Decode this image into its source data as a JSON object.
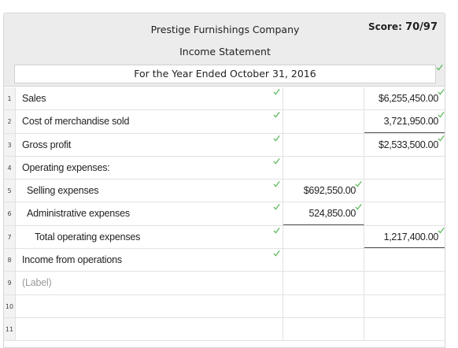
{
  "header": {
    "company": "Prestige Furnishings Company",
    "statement": "Income Statement",
    "period": "For the Year Ended October 31, 2016",
    "score_label": "Score:",
    "score_value": "70/97"
  },
  "colors": {
    "check": "#5cb85c",
    "header_bg": "#ececec"
  },
  "icons": {
    "check": "checkmark-icon"
  },
  "rows": [
    {
      "num": "1",
      "label": "Sales",
      "col1": "",
      "col2": "$6,255,450.00"
    },
    {
      "num": "2",
      "label": "Cost of merchandise sold",
      "col1": "",
      "col2": "3,721,950.00"
    },
    {
      "num": "3",
      "label": "Gross profit",
      "col1": "",
      "col2": "$2,533,500.00"
    },
    {
      "num": "4",
      "label": "Operating expenses:",
      "col1": "",
      "col2": ""
    },
    {
      "num": "5",
      "label": "Selling expenses",
      "col1": "$692,550.00",
      "col2": ""
    },
    {
      "num": "6",
      "label": "Administrative expenses",
      "col1": "524,850.00",
      "col2": ""
    },
    {
      "num": "7",
      "label": "Total operating expenses",
      "col1": "",
      "col2": "1,217,400.00"
    },
    {
      "num": "8",
      "label": "Income from operations",
      "col1": "",
      "col2": ""
    },
    {
      "num": "9",
      "label": "(Label)",
      "col1": "",
      "col2": ""
    },
    {
      "num": "10",
      "label": "",
      "col1": "",
      "col2": ""
    },
    {
      "num": "11",
      "label": "",
      "col1": "",
      "col2": ""
    }
  ]
}
